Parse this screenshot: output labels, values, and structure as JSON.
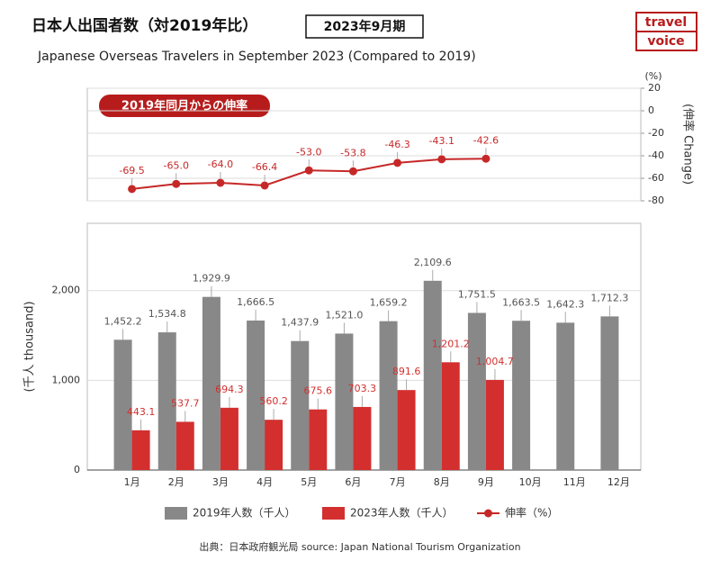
{
  "header": {
    "title": "日本人出国者数（対2019年比）",
    "period": "2023年9月期",
    "logo": [
      "travel",
      "voice"
    ],
    "subtitle": "Japanese Overseas Travelers in September 2023 (Compared to 2019)"
  },
  "chart_data": [
    {
      "type": "line",
      "annotation": "2019年同月からの伸率",
      "unit": "(%)",
      "y2label": "(伸率 Change)",
      "y2lim": [
        -80,
        20
      ],
      "y2ticks": [
        20,
        0,
        -20,
        -40,
        -60,
        -80
      ],
      "grid": true,
      "series": [
        {
          "name": "伸率（%）",
          "color": "#c62828",
          "axis": "y2",
          "values": [
            -69.5,
            -65.0,
            -64.0,
            -66.4,
            -53.0,
            -53.8,
            -46.3,
            -43.1,
            -42.6,
            null,
            null,
            null
          ],
          "value_labels": [
            "-69.5",
            "-65.0",
            "-64.0",
            "-66.4",
            "-53.0",
            "-53.8",
            "-46.3",
            "-43.1",
            "-42.6",
            null,
            null,
            null
          ]
        }
      ]
    },
    {
      "type": "bar",
      "ylabel": "(千人 thousand)",
      "categories": [
        "1月",
        "2月",
        "3月",
        "4月",
        "5月",
        "6月",
        "7月",
        "8月",
        "9月",
        "10月",
        "11月",
        "12月"
      ],
      "ylim": [
        0,
        2750
      ],
      "yticks": [
        0,
        {
          "value": 1000,
          "label": "1,000"
        },
        {
          "value": 2000,
          "label": "2,000"
        }
      ],
      "grid": true,
      "series": [
        {
          "name": "2019年人数（千人）",
          "color": "#888888",
          "values": [
            1452.2,
            1534.8,
            1929.9,
            1666.5,
            1437.9,
            1521.0,
            1659.2,
            2109.6,
            1751.5,
            1663.5,
            1642.3,
            1712.3
          ],
          "value_labels": [
            "1,452.2",
            "1,534.8",
            "1,929.9",
            "1,666.5",
            "1,437.9",
            "1,521.0",
            "1,659.2",
            "2,109.6",
            "1,751.5",
            "1,663.5",
            "1,642.3",
            "1,712.3"
          ]
        },
        {
          "name": "2023年人数（千人）",
          "color": "#d32f2f",
          "values": [
            443.1,
            537.7,
            694.3,
            560.2,
            675.6,
            703.3,
            891.6,
            1201.2,
            1004.7,
            null,
            null,
            null
          ],
          "value_labels": [
            "443.1",
            "537.7",
            "694.3",
            "560.2",
            "675.6",
            "703.3",
            "891.6",
            "1,201.2",
            "1,004.7",
            null,
            null,
            null
          ]
        }
      ]
    }
  ],
  "source": "出典：日本政府観光局  source: Japan National Tourism Organization"
}
